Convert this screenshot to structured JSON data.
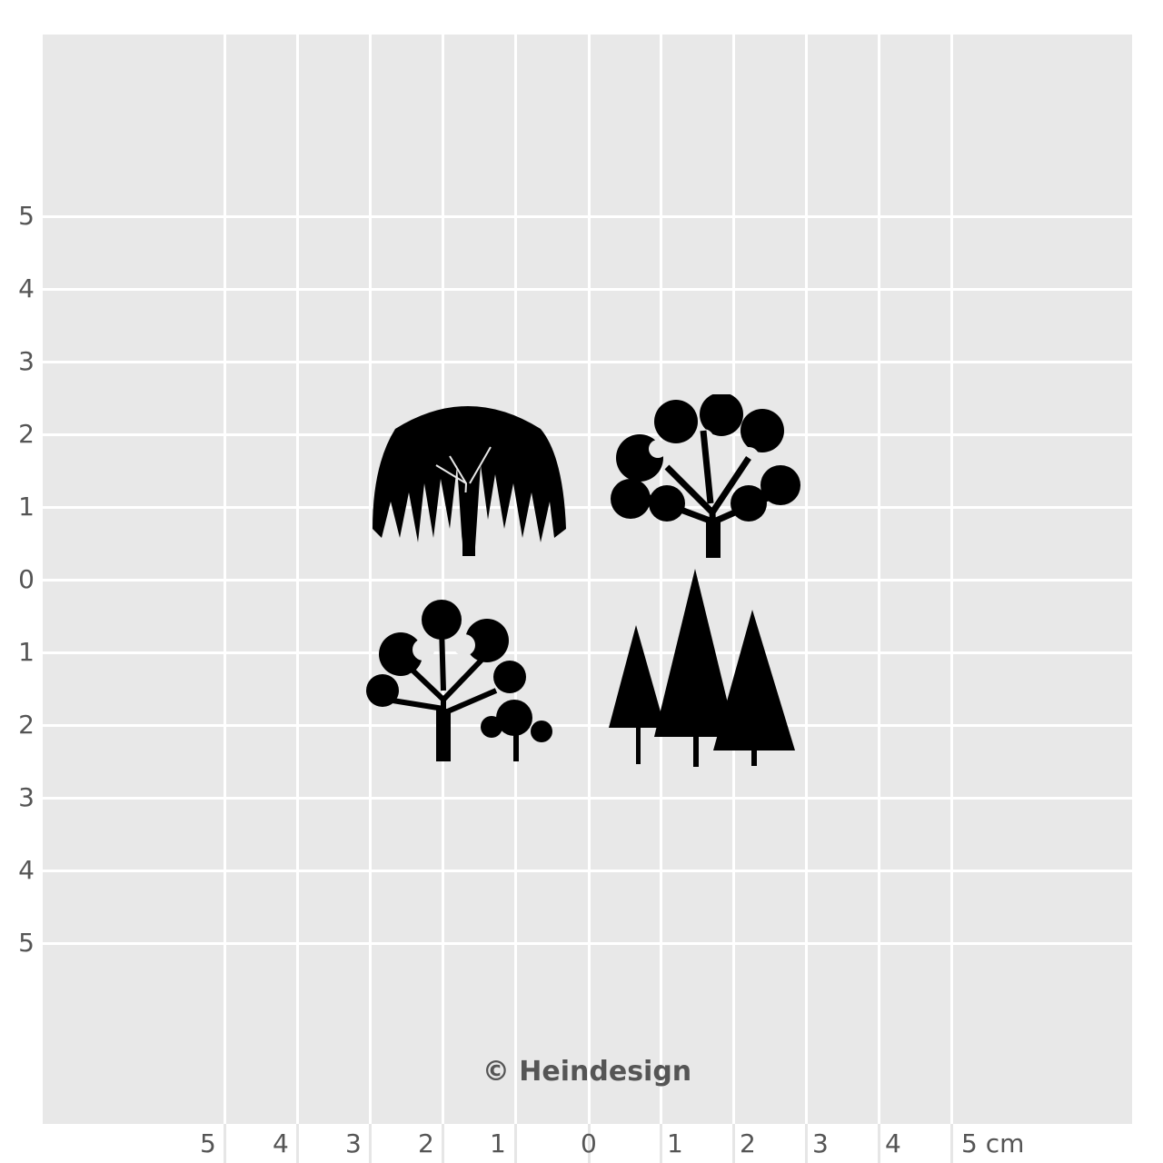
{
  "y_axis_labels": [
    "5",
    "4",
    "3",
    "2",
    "1",
    "0",
    "1",
    "2",
    "3",
    "4",
    "5"
  ],
  "x_axis_labels": [
    "5",
    "4",
    "3",
    "2",
    "1",
    "0",
    "1",
    "2",
    "3",
    "4",
    "5 cm"
  ],
  "copyright": "© Heindesign",
  "colors": {
    "grid_background": "#e8e8e8",
    "grid_lines": "#ffffff",
    "stamp_ink": "#000000",
    "text": "#555555"
  },
  "stamps": [
    "weeping-willow",
    "oak-tree",
    "deciduous-tree-pair",
    "conifer-group"
  ]
}
